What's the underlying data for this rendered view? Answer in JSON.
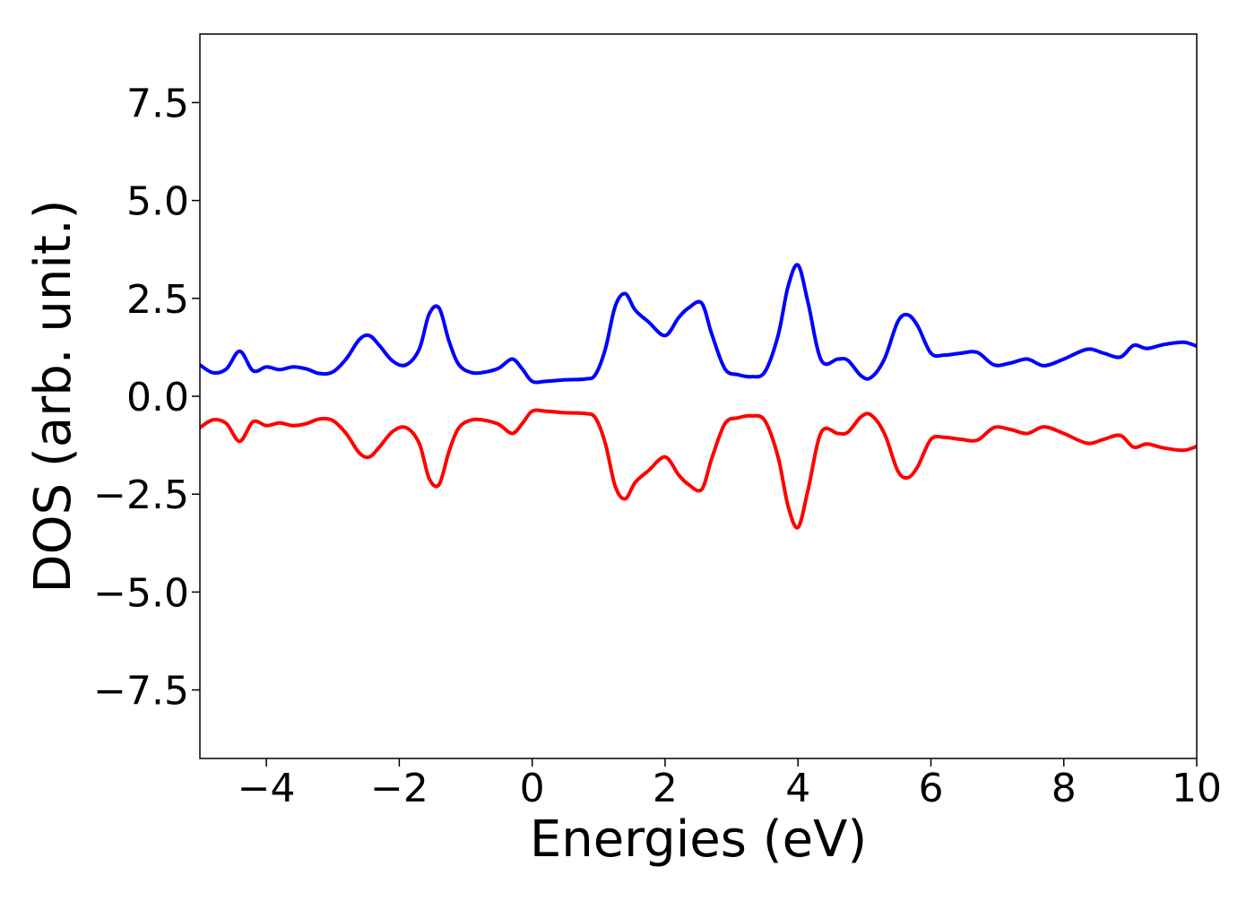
{
  "chart_data": {
    "type": "line",
    "title": "",
    "xlabel": "Energies (eV)",
    "ylabel": "DOS (arb. unit.)",
    "xlim": [
      -5,
      10
    ],
    "ylim": [
      -9.25,
      9.25
    ],
    "grid": false,
    "legend": "none",
    "xticks": [
      {
        "value": -4,
        "label": "−4"
      },
      {
        "value": -2,
        "label": "−2"
      },
      {
        "value": 0,
        "label": "0"
      },
      {
        "value": 2,
        "label": "2"
      },
      {
        "value": 4,
        "label": "4"
      },
      {
        "value": 6,
        "label": "6"
      },
      {
        "value": 8,
        "label": "8"
      },
      {
        "value": 10,
        "label": "10"
      }
    ],
    "yticks": [
      {
        "value": 7.5,
        "label": "7.5"
      },
      {
        "value": 5.0,
        "label": "5.0"
      },
      {
        "value": 2.5,
        "label": "2.5"
      },
      {
        "value": 0.0,
        "label": "0.0"
      },
      {
        "value": -2.5,
        "label": "−2.5"
      },
      {
        "value": -5.0,
        "label": "−5.0"
      },
      {
        "value": -7.5,
        "label": "−7.5"
      }
    ],
    "series": [
      {
        "color": "#0000ff",
        "x": [
          -5.0,
          -4.8,
          -4.6,
          -4.4,
          -4.2,
          -4.0,
          -3.8,
          -3.6,
          -3.4,
          -3.2,
          -3.0,
          -2.8,
          -2.6,
          -2.45,
          -2.3,
          -2.1,
          -1.9,
          -1.7,
          -1.55,
          -1.4,
          -1.25,
          -1.1,
          -0.9,
          -0.7,
          -0.5,
          -0.3,
          -0.15,
          0.0,
          0.2,
          0.5,
          0.8,
          0.95,
          1.1,
          1.25,
          1.4,
          1.55,
          1.75,
          2.0,
          2.2,
          2.35,
          2.55,
          2.7,
          2.9,
          3.1,
          3.3,
          3.5,
          3.7,
          3.85,
          4.0,
          4.15,
          4.35,
          4.6,
          4.75,
          4.95,
          5.1,
          5.3,
          5.5,
          5.65,
          5.8,
          6.0,
          6.2,
          6.45,
          6.7,
          6.95,
          7.2,
          7.45,
          7.7,
          8.0,
          8.35,
          8.6,
          8.85,
          9.05,
          9.25,
          9.5,
          9.8,
          10.0
        ],
        "y": [
          0.8,
          0.6,
          0.7,
          1.15,
          0.65,
          0.75,
          0.68,
          0.75,
          0.7,
          0.58,
          0.62,
          0.95,
          1.45,
          1.55,
          1.3,
          0.9,
          0.8,
          1.2,
          2.1,
          2.25,
          1.4,
          0.8,
          0.6,
          0.62,
          0.72,
          0.95,
          0.7,
          0.38,
          0.38,
          0.42,
          0.44,
          0.55,
          1.2,
          2.3,
          2.62,
          2.2,
          1.9,
          1.55,
          2.0,
          2.25,
          2.38,
          1.6,
          0.7,
          0.55,
          0.5,
          0.62,
          1.55,
          2.8,
          3.35,
          2.4,
          0.92,
          0.95,
          0.92,
          0.52,
          0.48,
          0.95,
          1.9,
          2.08,
          1.8,
          1.1,
          1.05,
          1.1,
          1.12,
          0.8,
          0.85,
          0.95,
          0.78,
          0.95,
          1.2,
          1.1,
          1.0,
          1.3,
          1.22,
          1.32,
          1.38,
          1.28
        ]
      },
      {
        "color": "#ff0000",
        "x": [
          -5.0,
          -4.8,
          -4.6,
          -4.4,
          -4.2,
          -4.0,
          -3.8,
          -3.6,
          -3.4,
          -3.2,
          -3.0,
          -2.8,
          -2.6,
          -2.45,
          -2.3,
          -2.1,
          -1.9,
          -1.7,
          -1.55,
          -1.4,
          -1.25,
          -1.1,
          -0.9,
          -0.7,
          -0.5,
          -0.3,
          -0.15,
          0.0,
          0.2,
          0.5,
          0.8,
          0.95,
          1.1,
          1.25,
          1.4,
          1.55,
          1.75,
          2.0,
          2.2,
          2.35,
          2.55,
          2.7,
          2.9,
          3.1,
          3.3,
          3.5,
          3.7,
          3.85,
          4.0,
          4.15,
          4.35,
          4.6,
          4.75,
          4.95,
          5.1,
          5.3,
          5.5,
          5.65,
          5.8,
          6.0,
          6.2,
          6.45,
          6.7,
          6.95,
          7.2,
          7.45,
          7.7,
          8.0,
          8.35,
          8.6,
          8.85,
          9.05,
          9.25,
          9.5,
          9.8,
          10.0
        ],
        "y": [
          -0.8,
          -0.6,
          -0.7,
          -1.15,
          -0.65,
          -0.75,
          -0.68,
          -0.75,
          -0.7,
          -0.58,
          -0.62,
          -0.95,
          -1.45,
          -1.55,
          -1.3,
          -0.9,
          -0.8,
          -1.2,
          -2.1,
          -2.25,
          -1.4,
          -0.8,
          -0.6,
          -0.62,
          -0.72,
          -0.95,
          -0.7,
          -0.38,
          -0.38,
          -0.42,
          -0.44,
          -0.55,
          -1.2,
          -2.3,
          -2.62,
          -2.2,
          -1.9,
          -1.55,
          -2.0,
          -2.25,
          -2.38,
          -1.6,
          -0.7,
          -0.55,
          -0.5,
          -0.62,
          -1.55,
          -2.8,
          -3.35,
          -2.4,
          -0.92,
          -0.95,
          -0.92,
          -0.52,
          -0.48,
          -0.95,
          -1.9,
          -2.08,
          -1.8,
          -1.1,
          -1.05,
          -1.1,
          -1.12,
          -0.8,
          -0.85,
          -0.95,
          -0.78,
          -0.95,
          -1.2,
          -1.1,
          -1.0,
          -1.3,
          -1.22,
          -1.32,
          -1.38,
          -1.28
        ]
      }
    ]
  }
}
